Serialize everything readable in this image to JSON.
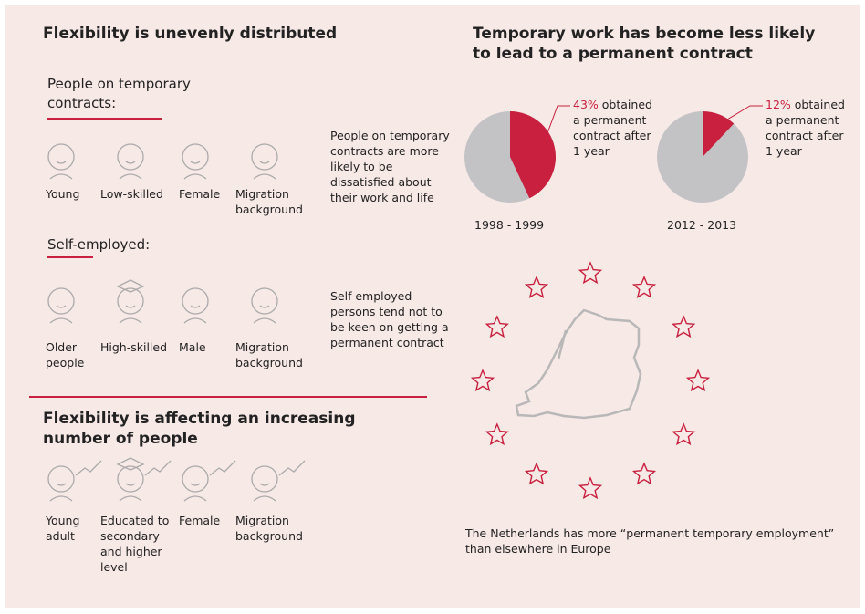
{
  "left": {
    "title": "Flexibility is unevenly distributed",
    "groups": [
      {
        "heading": "People on temporary contracts:",
        "items": [
          "Young",
          "Low-skilled",
          "Female",
          "Migration background"
        ],
        "note": "People on temporary contracts are more likely to be dissatisfied about their work and life"
      },
      {
        "heading": "Self-employed:",
        "items": [
          "Older people",
          "High-skilled",
          "Male",
          "Migration background"
        ],
        "note": "Self-employed persons tend not to be keen on getting a permanent contract"
      }
    ],
    "title2": "Flexibility is affecting an increasing number of people",
    "growing": [
      "Young adult",
      "Educated to secondary and higher level",
      "Female",
      "Migration background"
    ]
  },
  "right": {
    "title": "Temporary work has become less likely to lead to a permanent contract",
    "pies": [
      {
        "period": "1998 - 1999",
        "value": 43,
        "value_label": "43%",
        "caption": "obtained a permanent contract after 1 year"
      },
      {
        "period": "2012 - 2013",
        "value": 12,
        "value_label": "12%",
        "caption": "obtained a permanent contract after 1 year"
      }
    ],
    "map_caption": "The Netherlands has more “permanent temporary employment” than elsewhere in Europe"
  }
}
